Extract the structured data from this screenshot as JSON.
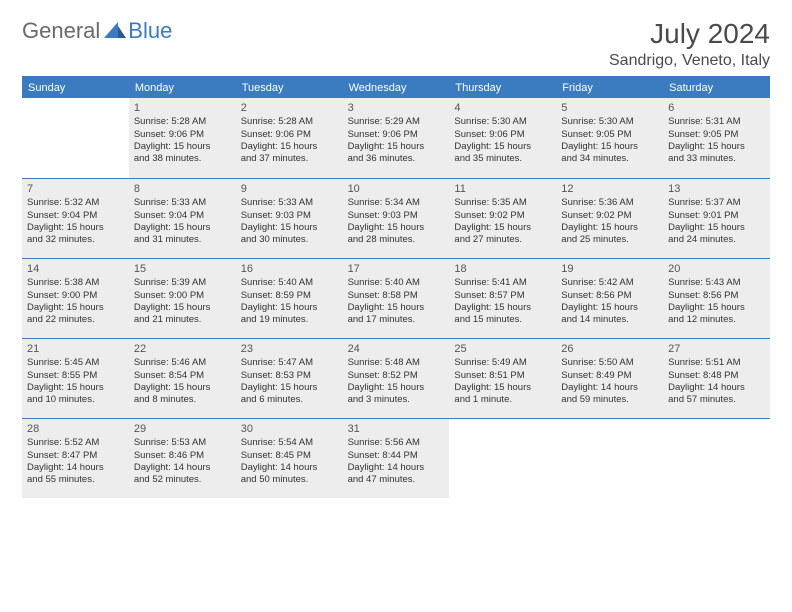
{
  "logo": {
    "part1": "General",
    "part2": "Blue"
  },
  "title": "July 2024",
  "location": "Sandrigo, Veneto, Italy",
  "colors": {
    "accent": "#3b7bbf",
    "shaded": "#ededed",
    "text": "#333333"
  },
  "dayHeaders": [
    "Sunday",
    "Monday",
    "Tuesday",
    "Wednesday",
    "Thursday",
    "Friday",
    "Saturday"
  ],
  "weeks": [
    [
      {
        "n": "",
        "sr": "",
        "ss": "",
        "d1": "",
        "d2": ""
      },
      {
        "n": "1",
        "sr": "Sunrise: 5:28 AM",
        "ss": "Sunset: 9:06 PM",
        "d1": "Daylight: 15 hours",
        "d2": "and 38 minutes."
      },
      {
        "n": "2",
        "sr": "Sunrise: 5:28 AM",
        "ss": "Sunset: 9:06 PM",
        "d1": "Daylight: 15 hours",
        "d2": "and 37 minutes."
      },
      {
        "n": "3",
        "sr": "Sunrise: 5:29 AM",
        "ss": "Sunset: 9:06 PM",
        "d1": "Daylight: 15 hours",
        "d2": "and 36 minutes."
      },
      {
        "n": "4",
        "sr": "Sunrise: 5:30 AM",
        "ss": "Sunset: 9:06 PM",
        "d1": "Daylight: 15 hours",
        "d2": "and 35 minutes."
      },
      {
        "n": "5",
        "sr": "Sunrise: 5:30 AM",
        "ss": "Sunset: 9:05 PM",
        "d1": "Daylight: 15 hours",
        "d2": "and 34 minutes."
      },
      {
        "n": "6",
        "sr": "Sunrise: 5:31 AM",
        "ss": "Sunset: 9:05 PM",
        "d1": "Daylight: 15 hours",
        "d2": "and 33 minutes."
      }
    ],
    [
      {
        "n": "7",
        "sr": "Sunrise: 5:32 AM",
        "ss": "Sunset: 9:04 PM",
        "d1": "Daylight: 15 hours",
        "d2": "and 32 minutes."
      },
      {
        "n": "8",
        "sr": "Sunrise: 5:33 AM",
        "ss": "Sunset: 9:04 PM",
        "d1": "Daylight: 15 hours",
        "d2": "and 31 minutes."
      },
      {
        "n": "9",
        "sr": "Sunrise: 5:33 AM",
        "ss": "Sunset: 9:03 PM",
        "d1": "Daylight: 15 hours",
        "d2": "and 30 minutes."
      },
      {
        "n": "10",
        "sr": "Sunrise: 5:34 AM",
        "ss": "Sunset: 9:03 PM",
        "d1": "Daylight: 15 hours",
        "d2": "and 28 minutes."
      },
      {
        "n": "11",
        "sr": "Sunrise: 5:35 AM",
        "ss": "Sunset: 9:02 PM",
        "d1": "Daylight: 15 hours",
        "d2": "and 27 minutes."
      },
      {
        "n": "12",
        "sr": "Sunrise: 5:36 AM",
        "ss": "Sunset: 9:02 PM",
        "d1": "Daylight: 15 hours",
        "d2": "and 25 minutes."
      },
      {
        "n": "13",
        "sr": "Sunrise: 5:37 AM",
        "ss": "Sunset: 9:01 PM",
        "d1": "Daylight: 15 hours",
        "d2": "and 24 minutes."
      }
    ],
    [
      {
        "n": "14",
        "sr": "Sunrise: 5:38 AM",
        "ss": "Sunset: 9:00 PM",
        "d1": "Daylight: 15 hours",
        "d2": "and 22 minutes."
      },
      {
        "n": "15",
        "sr": "Sunrise: 5:39 AM",
        "ss": "Sunset: 9:00 PM",
        "d1": "Daylight: 15 hours",
        "d2": "and 21 minutes."
      },
      {
        "n": "16",
        "sr": "Sunrise: 5:40 AM",
        "ss": "Sunset: 8:59 PM",
        "d1": "Daylight: 15 hours",
        "d2": "and 19 minutes."
      },
      {
        "n": "17",
        "sr": "Sunrise: 5:40 AM",
        "ss": "Sunset: 8:58 PM",
        "d1": "Daylight: 15 hours",
        "d2": "and 17 minutes."
      },
      {
        "n": "18",
        "sr": "Sunrise: 5:41 AM",
        "ss": "Sunset: 8:57 PM",
        "d1": "Daylight: 15 hours",
        "d2": "and 15 minutes."
      },
      {
        "n": "19",
        "sr": "Sunrise: 5:42 AM",
        "ss": "Sunset: 8:56 PM",
        "d1": "Daylight: 15 hours",
        "d2": "and 14 minutes."
      },
      {
        "n": "20",
        "sr": "Sunrise: 5:43 AM",
        "ss": "Sunset: 8:56 PM",
        "d1": "Daylight: 15 hours",
        "d2": "and 12 minutes."
      }
    ],
    [
      {
        "n": "21",
        "sr": "Sunrise: 5:45 AM",
        "ss": "Sunset: 8:55 PM",
        "d1": "Daylight: 15 hours",
        "d2": "and 10 minutes."
      },
      {
        "n": "22",
        "sr": "Sunrise: 5:46 AM",
        "ss": "Sunset: 8:54 PM",
        "d1": "Daylight: 15 hours",
        "d2": "and 8 minutes."
      },
      {
        "n": "23",
        "sr": "Sunrise: 5:47 AM",
        "ss": "Sunset: 8:53 PM",
        "d1": "Daylight: 15 hours",
        "d2": "and 6 minutes."
      },
      {
        "n": "24",
        "sr": "Sunrise: 5:48 AM",
        "ss": "Sunset: 8:52 PM",
        "d1": "Daylight: 15 hours",
        "d2": "and 3 minutes."
      },
      {
        "n": "25",
        "sr": "Sunrise: 5:49 AM",
        "ss": "Sunset: 8:51 PM",
        "d1": "Daylight: 15 hours",
        "d2": "and 1 minute."
      },
      {
        "n": "26",
        "sr": "Sunrise: 5:50 AM",
        "ss": "Sunset: 8:49 PM",
        "d1": "Daylight: 14 hours",
        "d2": "and 59 minutes."
      },
      {
        "n": "27",
        "sr": "Sunrise: 5:51 AM",
        "ss": "Sunset: 8:48 PM",
        "d1": "Daylight: 14 hours",
        "d2": "and 57 minutes."
      }
    ],
    [
      {
        "n": "28",
        "sr": "Sunrise: 5:52 AM",
        "ss": "Sunset: 8:47 PM",
        "d1": "Daylight: 14 hours",
        "d2": "and 55 minutes."
      },
      {
        "n": "29",
        "sr": "Sunrise: 5:53 AM",
        "ss": "Sunset: 8:46 PM",
        "d1": "Daylight: 14 hours",
        "d2": "and 52 minutes."
      },
      {
        "n": "30",
        "sr": "Sunrise: 5:54 AM",
        "ss": "Sunset: 8:45 PM",
        "d1": "Daylight: 14 hours",
        "d2": "and 50 minutes."
      },
      {
        "n": "31",
        "sr": "Sunrise: 5:56 AM",
        "ss": "Sunset: 8:44 PM",
        "d1": "Daylight: 14 hours",
        "d2": "and 47 minutes."
      },
      {
        "n": "",
        "sr": "",
        "ss": "",
        "d1": "",
        "d2": ""
      },
      {
        "n": "",
        "sr": "",
        "ss": "",
        "d1": "",
        "d2": ""
      },
      {
        "n": "",
        "sr": "",
        "ss": "",
        "d1": "",
        "d2": ""
      }
    ]
  ]
}
